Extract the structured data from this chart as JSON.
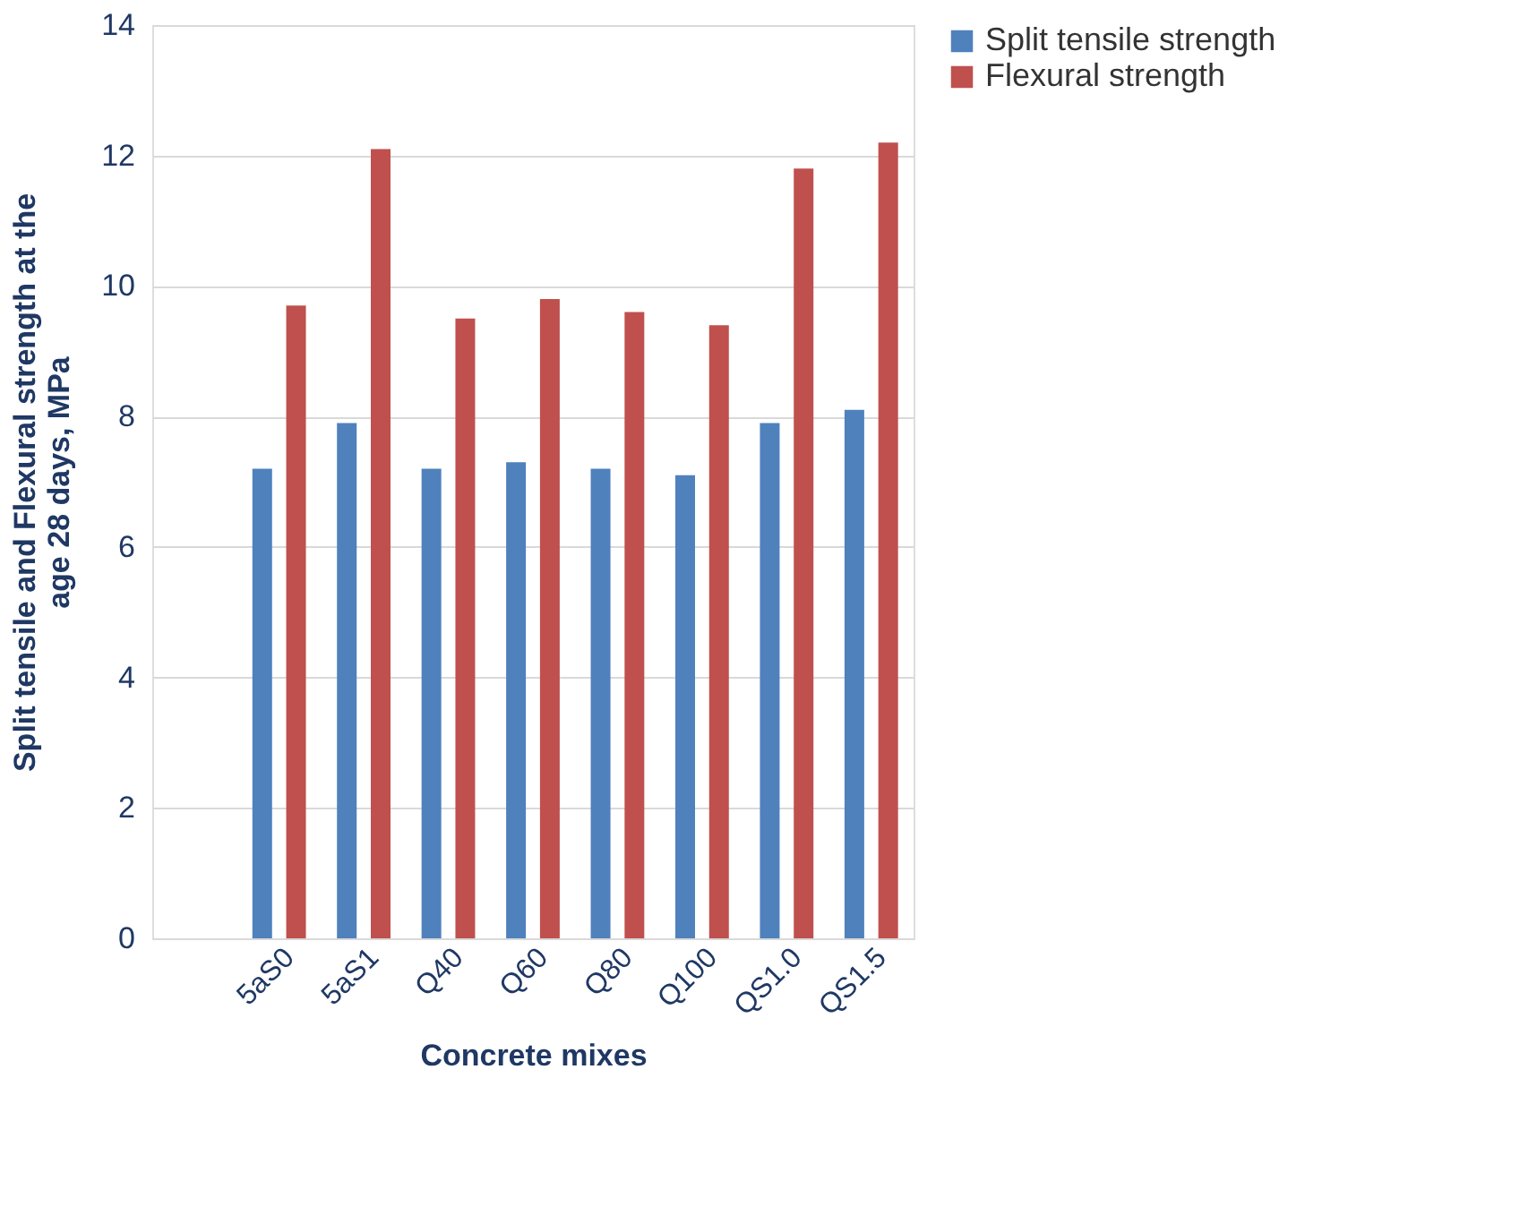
{
  "chart_data": {
    "type": "bar",
    "xlabel": "Concrete mixes",
    "ylabel": "Split tensile   and Flexural strength at the age 28 days, MPa",
    "categories": [
      null,
      "5aS0",
      "5aS1",
      "Q40",
      "Q60",
      "Q80",
      "Q100",
      "QS1.0",
      "QS1.5"
    ],
    "series": [
      {
        "name": "Split tensile strength",
        "color": "#4f81bd",
        "values": [
          null,
          7.2,
          7.9,
          7.2,
          7.3,
          7.2,
          7.1,
          7.9,
          8.1
        ]
      },
      {
        "name": "Flexural strength",
        "color": "#c0504d",
        "values": [
          null,
          9.7,
          12.1,
          9.5,
          9.8,
          9.6,
          9.4,
          11.8,
          12.2
        ]
      }
    ],
    "ylim": [
      0,
      14
    ],
    "yticks": [
      0,
      2,
      4,
      6,
      8,
      10,
      12,
      14
    ],
    "grid": "y",
    "legend": "right"
  }
}
